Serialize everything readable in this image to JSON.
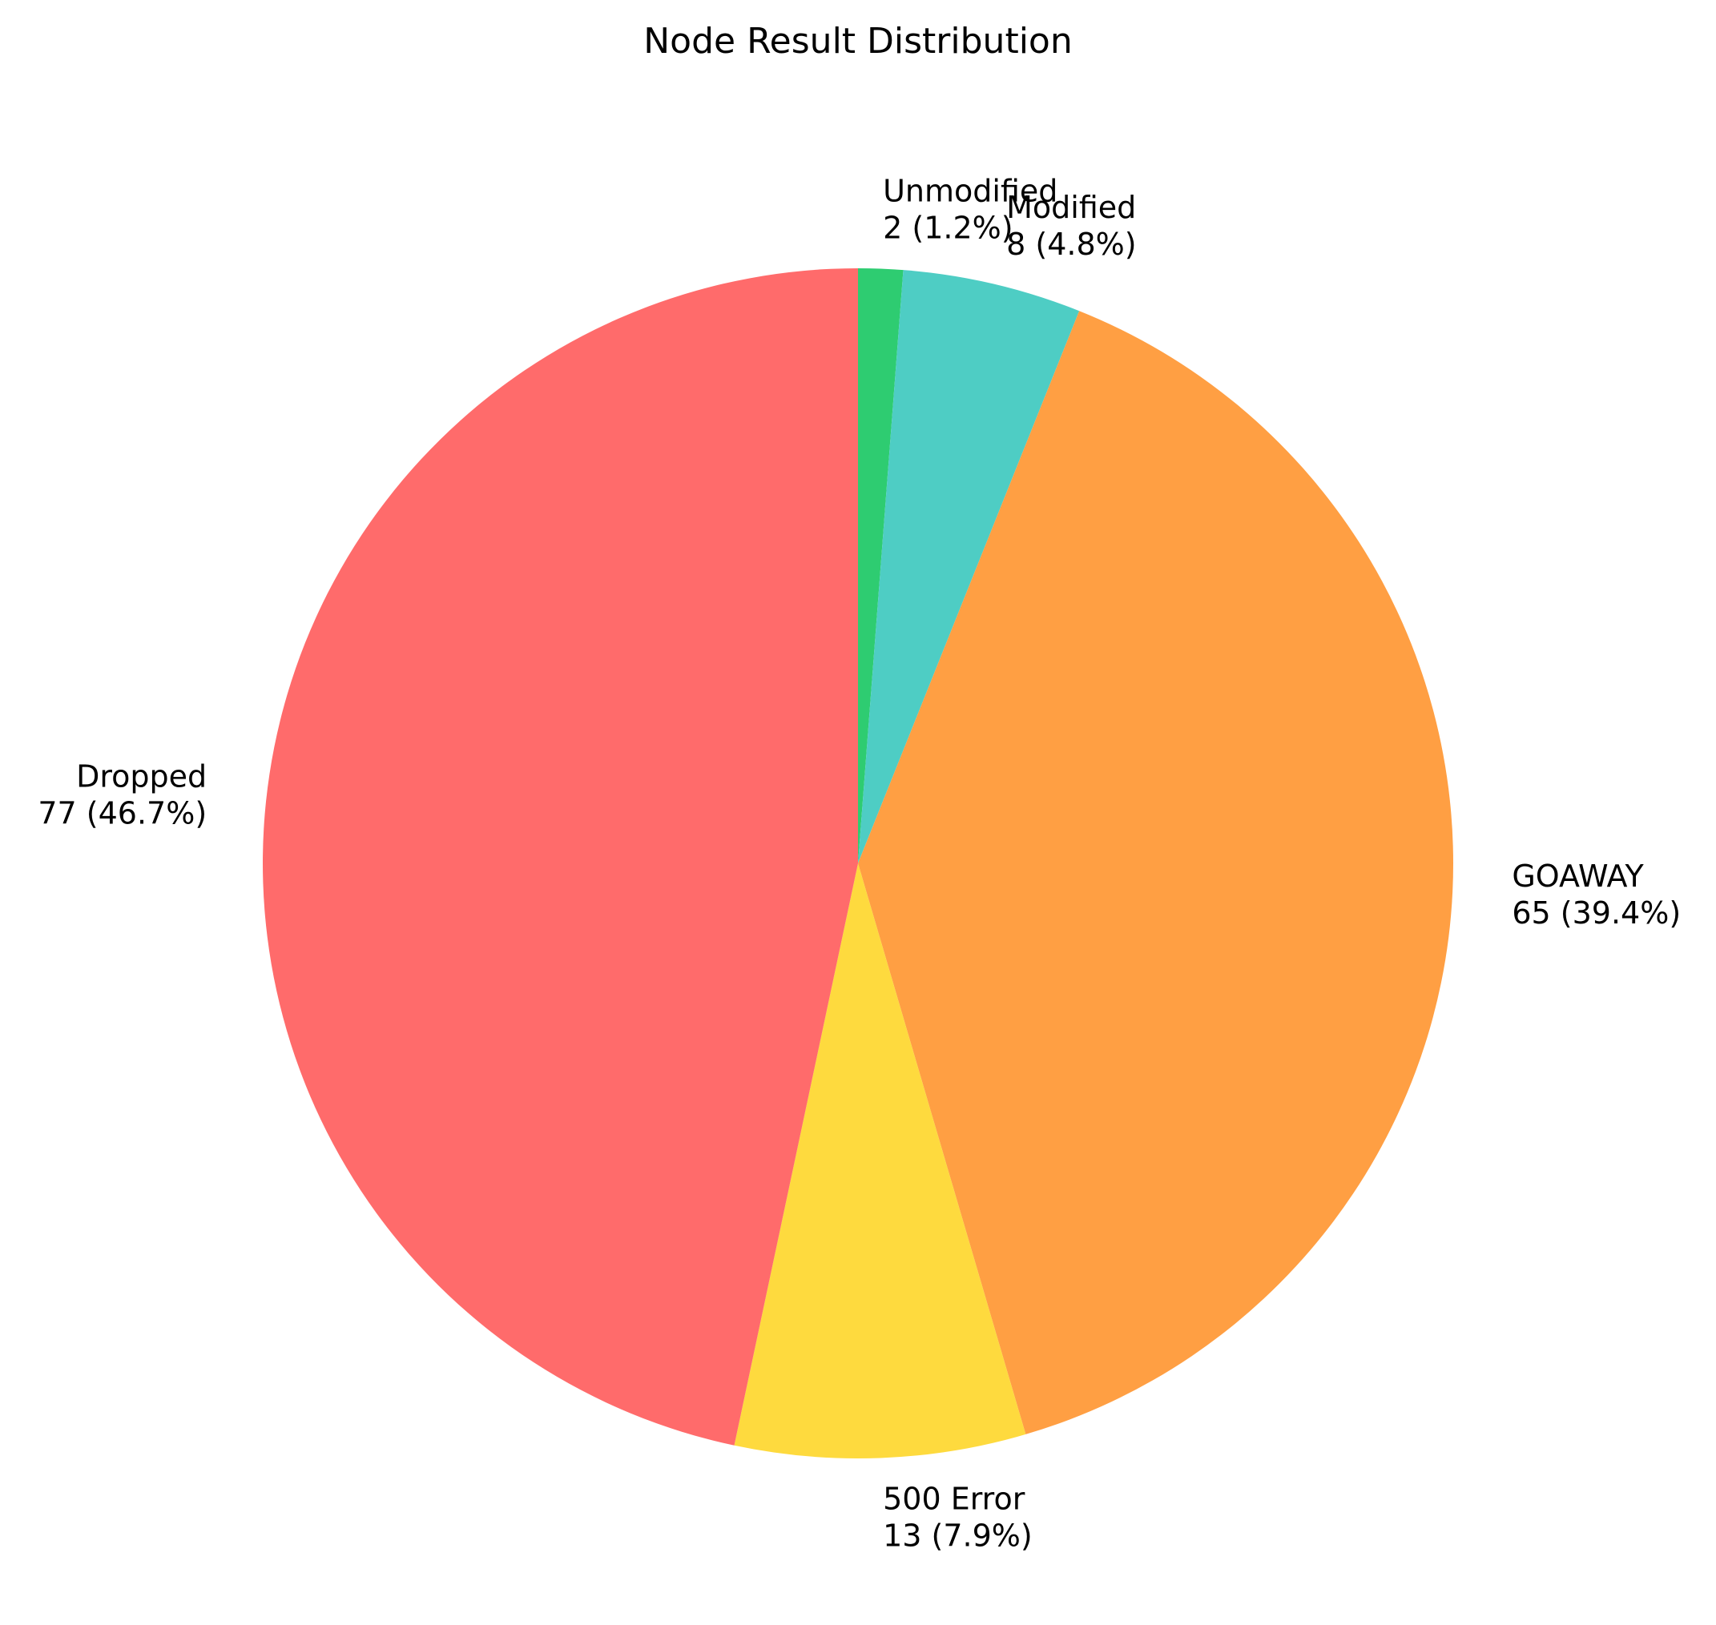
{
  "chart_data": {
    "type": "pie",
    "title": "Node Result Distribution",
    "start_angle_deg": 90,
    "direction": "clockwise",
    "slices": [
      {
        "label": "Unmodified",
        "value": 2,
        "percent_text": "1.2%",
        "color": "#2ecc71"
      },
      {
        "label": "Modified",
        "value": 8,
        "percent_text": "4.8%",
        "color": "#4ecdc4"
      },
      {
        "label": "GOAWAY",
        "value": 65,
        "percent_text": "39.4%",
        "color": "#ff9f43"
      },
      {
        "label": "500 Error",
        "value": 13,
        "percent_text": "7.9%",
        "color": "#feda3e"
      },
      {
        "label": "Dropped",
        "value": 77,
        "percent_text": "46.7%",
        "color": "#ff6b6b"
      }
    ]
  }
}
